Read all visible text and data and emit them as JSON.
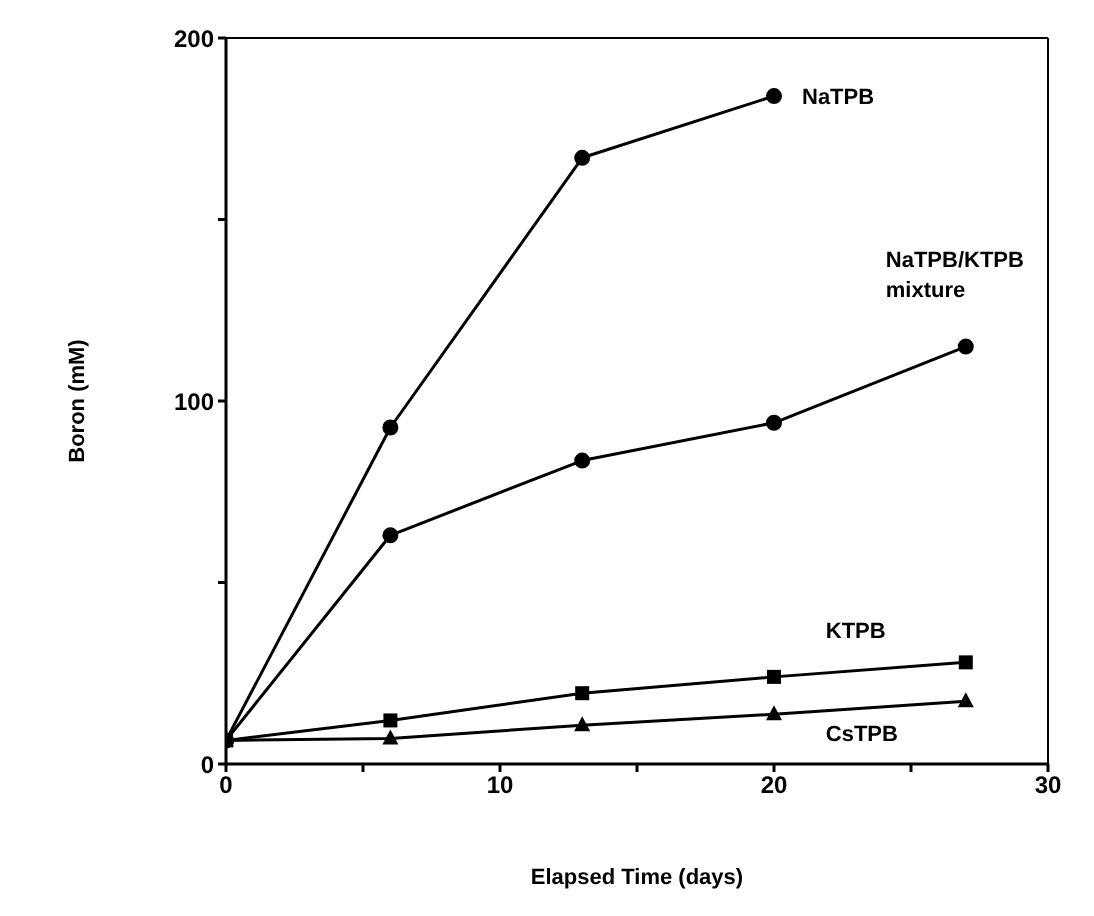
{
  "chart_data": {
    "type": "line",
    "xlabel": "Elapsed Time (days)",
    "ylabel": "Boron (mM)",
    "x": [
      0,
      6,
      13,
      20,
      27
    ],
    "series": [
      {
        "name": "NaTPB",
        "color": "#000000",
        "marker": "circle",
        "values": [
          6.5,
          92.7,
          167,
          184,
          null
        ]
      },
      {
        "name": "NaTPB/KTPB mixture",
        "color": "#000000",
        "marker": "circle",
        "values": [
          6.5,
          63,
          83.6,
          94,
          115
        ]
      },
      {
        "name": "KTPB",
        "color": "#000000",
        "marker": "square",
        "values": [
          6.5,
          12,
          19.5,
          24,
          28
        ]
      },
      {
        "name": "CsTPB",
        "color": "#000000",
        "marker": "triangle",
        "values": [
          6.5,
          7,
          10.7,
          13.7,
          17.3
        ]
      }
    ],
    "xlim": [
      0,
      30
    ],
    "xticks": [
      0,
      {
        "value": 5,
        "label": null
      },
      10,
      {
        "value": 15,
        "label": null
      },
      20,
      {
        "value": 25,
        "label": null
      },
      30
    ],
    "ylim": [
      0,
      200
    ],
    "yticks": [
      0,
      {
        "value": 50,
        "label": null
      },
      100,
      {
        "value": 150,
        "label": null
      },
      200
    ],
    "line_style": "solid"
  }
}
